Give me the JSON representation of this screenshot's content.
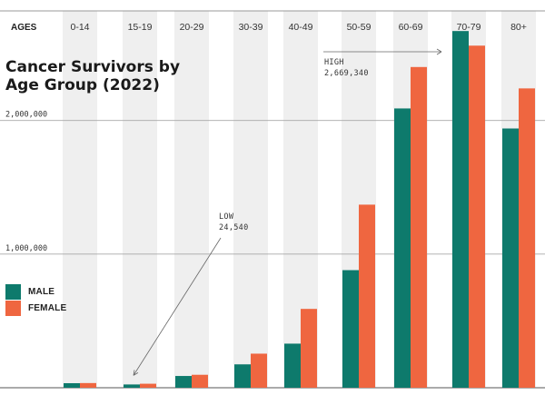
{
  "chart_data": {
    "type": "bar",
    "title_lines": [
      "Cancer Survivors by",
      "Age Group (2022)"
    ],
    "axis_header": "AGES",
    "categories": [
      "0-14",
      "15-19",
      "20-29",
      "30-39",
      "40-49",
      "50-59",
      "60-69",
      "70-79",
      "80+"
    ],
    "series": [
      {
        "name": "MALE",
        "color": "#0e7a6c",
        "values": [
          34000,
          24540,
          88000,
          175000,
          330000,
          880000,
          2090000,
          2669340,
          1940000
        ]
      },
      {
        "name": "FEMALE",
        "color": "#ef6640",
        "values": [
          35000,
          30000,
          97000,
          255000,
          590000,
          1370000,
          2400000,
          2560000,
          2240000
        ]
      }
    ],
    "ylim": [
      0,
      2820000
    ],
    "yticks": [
      {
        "value": 1000000,
        "label": "1,000,000"
      },
      {
        "value": 2000000,
        "label": "2,000,000"
      }
    ],
    "band_color": "#efefef",
    "annotations": {
      "low": {
        "label": "LOW",
        "value": "24,540",
        "category": "15-19"
      },
      "high": {
        "label": "HIGH",
        "value": "2,669,340",
        "category": "70-79"
      }
    }
  }
}
